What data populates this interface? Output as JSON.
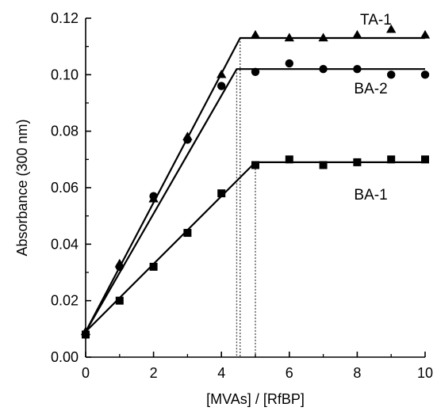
{
  "chart_data": {
    "type": "scatter",
    "xlabel": "[MVAs] / [RfBP]",
    "ylabel": "Absorbance (300 nm)",
    "xlim": [
      0,
      10
    ],
    "ylim": [
      0,
      0.12
    ],
    "x_ticks": [
      0,
      2,
      4,
      6,
      8,
      10
    ],
    "x_tick_labels": [
      "0",
      "2",
      "4",
      "6",
      "8",
      "10"
    ],
    "y_ticks": [
      0,
      0.02,
      0.04,
      0.06,
      0.08,
      0.1,
      0.12
    ],
    "y_tick_labels": [
      "0.00",
      "0.02",
      "0.04",
      "0.06",
      "0.08",
      "0.10",
      "0.12"
    ],
    "grid": false,
    "legend": "none",
    "series": [
      {
        "name": "TA-1",
        "marker": "triangle",
        "points": [
          [
            0,
            0.009
          ],
          [
            1,
            0.033
          ],
          [
            2,
            0.056
          ],
          [
            3,
            0.078
          ],
          [
            4,
            0.1
          ],
          [
            5,
            0.114
          ],
          [
            6,
            0.113
          ],
          [
            7,
            0.113
          ],
          [
            8,
            0.114
          ],
          [
            9,
            0.116
          ],
          [
            10,
            0.114
          ]
        ],
        "fit_line": [
          [
            0,
            0.009
          ],
          [
            4.55,
            0.113
          ],
          [
            10,
            0.113
          ]
        ]
      },
      {
        "name": "BA-2",
        "marker": "circle",
        "points": [
          [
            0,
            0.008
          ],
          [
            1,
            0.032
          ],
          [
            2,
            0.057
          ],
          [
            3,
            0.077
          ],
          [
            4,
            0.096
          ],
          [
            5,
            0.101
          ],
          [
            6,
            0.104
          ],
          [
            7,
            0.102
          ],
          [
            8,
            0.102
          ],
          [
            9,
            0.1
          ],
          [
            10,
            0.1
          ]
        ],
        "fit_line": [
          [
            0,
            0.009
          ],
          [
            4.45,
            0.102
          ],
          [
            10,
            0.102
          ]
        ]
      },
      {
        "name": "BA-1",
        "marker": "square",
        "points": [
          [
            0,
            0.008
          ],
          [
            1,
            0.02
          ],
          [
            2,
            0.032
          ],
          [
            3,
            0.044
          ],
          [
            4,
            0.058
          ],
          [
            5,
            0.068
          ],
          [
            6,
            0.07
          ],
          [
            7,
            0.068
          ],
          [
            8,
            0.069
          ],
          [
            9,
            0.07
          ],
          [
            10,
            0.07
          ]
        ],
        "fit_line": [
          [
            0,
            0.009
          ],
          [
            5,
            0.069
          ],
          [
            10,
            0.069
          ]
        ]
      }
    ],
    "vertical_guides": [
      4.45,
      4.55,
      5
    ]
  }
}
